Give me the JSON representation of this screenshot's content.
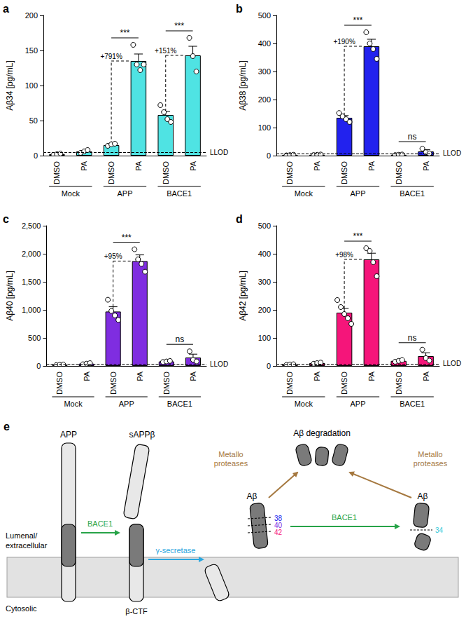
{
  "chart_data": [
    {
      "panel": "a",
      "type": "bar",
      "y_label": "Aβ34 [pg/mL]",
      "color": "#4fe3e3",
      "grid": false,
      "categories": [
        "DMSO",
        "PA",
        "DMSO",
        "PA",
        "DMSO",
        "PA"
      ],
      "groups": [
        "Mock",
        "APP",
        "BACE1"
      ],
      "values": [
        2,
        6,
        15,
        135,
        58,
        143
      ],
      "errors": [
        0.5,
        1.5,
        1.5,
        10,
        5,
        13
      ],
      "points": [
        [
          1,
          2,
          3
        ],
        [
          4,
          6,
          8
        ],
        [
          14,
          16,
          17
        ],
        [
          158,
          130,
          122,
          130
        ],
        [
          72,
          62,
          52,
          48
        ],
        [
          168,
          142,
          120
        ]
      ],
      "ylim": [
        0,
        200
      ],
      "yticks": [
        0,
        50,
        100,
        150,
        200
      ],
      "llod": {
        "value": 5,
        "label": "LLOD"
      },
      "comparisons": [
        {
          "group": "APP",
          "label": "***",
          "change": "+791%"
        },
        {
          "group": "BACE1",
          "label": "***",
          "change": "+151%"
        }
      ]
    },
    {
      "panel": "b",
      "type": "bar",
      "y_label": "Aβ38 [pg/mL]",
      "color": "#2222ee",
      "grid": false,
      "categories": [
        "DMSO",
        "PA",
        "DMSO",
        "PA",
        "DMSO",
        "PA"
      ],
      "groups": [
        "Mock",
        "APP",
        "BACE1"
      ],
      "values": [
        2,
        3,
        135,
        390,
        3,
        15
      ],
      "errors": [
        0.5,
        0.5,
        8,
        25,
        0.5,
        6
      ],
      "points": [
        [
          1,
          2,
          3
        ],
        [
          2,
          3,
          4
        ],
        [
          152,
          140,
          130,
          120
        ],
        [
          440,
          400,
          380,
          345
        ],
        [
          2,
          3,
          4
        ],
        [
          25,
          12,
          8
        ]
      ],
      "ylim": [
        0,
        500
      ],
      "yticks": [
        0,
        100,
        200,
        300,
        400,
        500
      ],
      "llod": {
        "value": 8,
        "label": "LLOD"
      },
      "comparisons": [
        {
          "group": "APP",
          "label": "***",
          "change": "+190%"
        },
        {
          "group": "BACE1",
          "label": "ns"
        }
      ]
    },
    {
      "panel": "c",
      "type": "bar",
      "y_label": "Aβ40 [pg/mL]",
      "color": "#7f2de0",
      "grid": false,
      "categories": [
        "DMSO",
        "PA",
        "DMSO",
        "PA",
        "DMSO",
        "PA"
      ],
      "groups": [
        "Mock",
        "APP",
        "BACE1"
      ],
      "values": [
        20,
        40,
        970,
        1870,
        80,
        150
      ],
      "errors": [
        5,
        8,
        85,
        110,
        10,
        60
      ],
      "points": [
        [
          15,
          20,
          25
        ],
        [
          30,
          40,
          50
        ],
        [
          1180,
          980,
          900,
          820
        ],
        [
          2080,
          1900,
          1820,
          1680
        ],
        [
          70,
          80,
          90
        ],
        [
          260,
          110,
          80
        ]
      ],
      "ylim": [
        0,
        2500
      ],
      "yticks": [
        0,
        500,
        1000,
        1500,
        2000,
        2500
      ],
      "llod": {
        "value": 30,
        "label": "LLOD"
      },
      "comparisons": [
        {
          "group": "APP",
          "label": "***",
          "change": "+95%"
        },
        {
          "group": "BACE1",
          "label": "ns"
        }
      ]
    },
    {
      "panel": "d",
      "type": "bar",
      "y_label": "Aβ42 [pg/mL]",
      "color": "#f5157a",
      "grid": false,
      "categories": [
        "DMSO",
        "PA",
        "DMSO",
        "PA",
        "DMSO",
        "PA"
      ],
      "groups": [
        "Mock",
        "APP",
        "BACE1"
      ],
      "values": [
        5,
        10,
        190,
        380,
        18,
        35
      ],
      "errors": [
        1,
        2,
        15,
        22,
        3,
        12
      ],
      "points": [
        [
          4,
          5,
          6
        ],
        [
          8,
          10,
          12
        ],
        [
          235,
          210,
          185,
          170,
          150
        ],
        [
          420,
          410,
          370,
          320
        ],
        [
          15,
          18,
          21
        ],
        [
          58,
          28,
          19
        ]
      ],
      "ylim": [
        0,
        500
      ],
      "yticks": [
        0,
        100,
        200,
        300,
        400,
        500
      ],
      "llod": {
        "value": 8,
        "label": "LLOD"
      },
      "comparisons": [
        {
          "group": "APP",
          "label": "***",
          "change": "+98%"
        },
        {
          "group": "BACE1",
          "label": "ns"
        }
      ]
    }
  ],
  "diagram": {
    "panel": "e",
    "app": "APP",
    "sappb": "sAPPβ",
    "bctf": "β-CTF",
    "lumenal": [
      "Lumenal/",
      "extracellular"
    ],
    "cytosolic": "Cytosolic",
    "bace1": "BACE1",
    "gamma": "γ-secretase",
    "degradation": "Aβ degradation",
    "metallo": [
      "Metallo",
      "proteases"
    ],
    "abeta": "Aβ",
    "sites_long": [
      {
        "label": "38",
        "color": "#2222ee"
      },
      {
        "label": "40",
        "color": "#7f2de0"
      },
      {
        "label": "42",
        "color": "#f5157a"
      }
    ],
    "site_short": {
      "label": "34",
      "color": "#35c8d8"
    }
  }
}
